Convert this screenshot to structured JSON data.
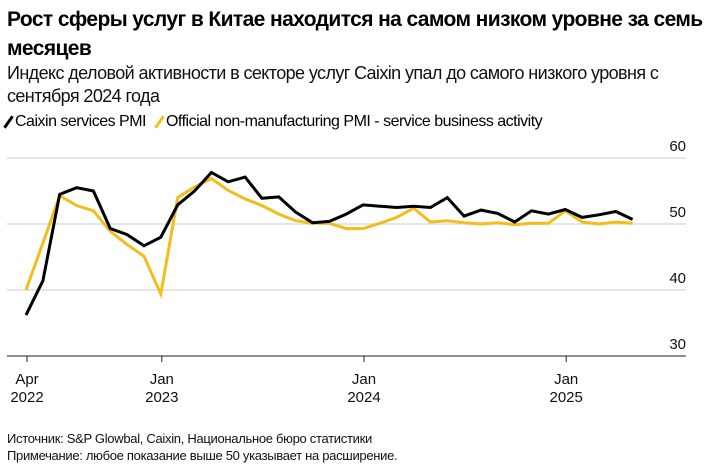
{
  "title": "Рост сферы услуг в Китае находится на самом низком уровне за семь месяцев",
  "subtitle": "Индекс деловой активности в секторе услуг Caixin упал до самого низкого уровня с сентября 2024 года",
  "footer": {
    "source": "Источник: S&P Glowbal, Caixin, Национальное бюро статистики",
    "note": "Примечание: любое показание выше 50 указывает на расширение."
  },
  "colors": {
    "caixin": "#000000",
    "official": "#f2bd1d",
    "grid": "#dddddd"
  },
  "chart_data": {
    "type": "line",
    "title": "Рост сферы услуг в Китае находится на самом низком уровне за семь месяцев",
    "start_month": "2022-04",
    "end_month": "2025-04",
    "ylim": [
      30,
      60
    ],
    "yticks": [
      "30",
      "40",
      "50",
      "60"
    ],
    "xticks": [
      {
        "month": "Apr",
        "year": "2022"
      },
      {
        "month": "Jan",
        "year": "2023"
      },
      {
        "month": "Jan",
        "year": "2024"
      },
      {
        "month": "Jan",
        "year": "2025"
      }
    ],
    "grid": true,
    "legend_position": "top-left",
    "series": [
      {
        "name": "Caixin services PMI",
        "color": "#000000",
        "values": [
          36.2,
          41.4,
          54.5,
          55.5,
          55.0,
          49.3,
          48.4,
          46.7,
          48.0,
          52.9,
          55.0,
          57.8,
          56.4,
          57.1,
          53.9,
          54.1,
          51.8,
          50.2,
          50.4,
          51.5,
          52.9,
          52.7,
          52.5,
          52.7,
          52.5,
          54.0,
          51.2,
          52.1,
          51.6,
          50.3,
          52.0,
          51.5,
          52.2,
          51.0,
          51.4,
          51.9,
          50.7
        ]
      },
      {
        "name": "Official non-manufacturing PMI - service business activity",
        "color": "#f2bd1d",
        "values": [
          40.0,
          47.1,
          54.3,
          52.8,
          52.0,
          48.9,
          46.9,
          45.1,
          39.4,
          54.0,
          55.6,
          56.9,
          55.1,
          53.8,
          52.8,
          51.5,
          50.5,
          50.1,
          50.1,
          49.3,
          49.3,
          50.1,
          51.0,
          52.4,
          50.3,
          50.5,
          50.2,
          50.0,
          50.2,
          49.9,
          50.1,
          50.1,
          52.0,
          50.3,
          50.0,
          50.3,
          50.1
        ]
      }
    ]
  }
}
